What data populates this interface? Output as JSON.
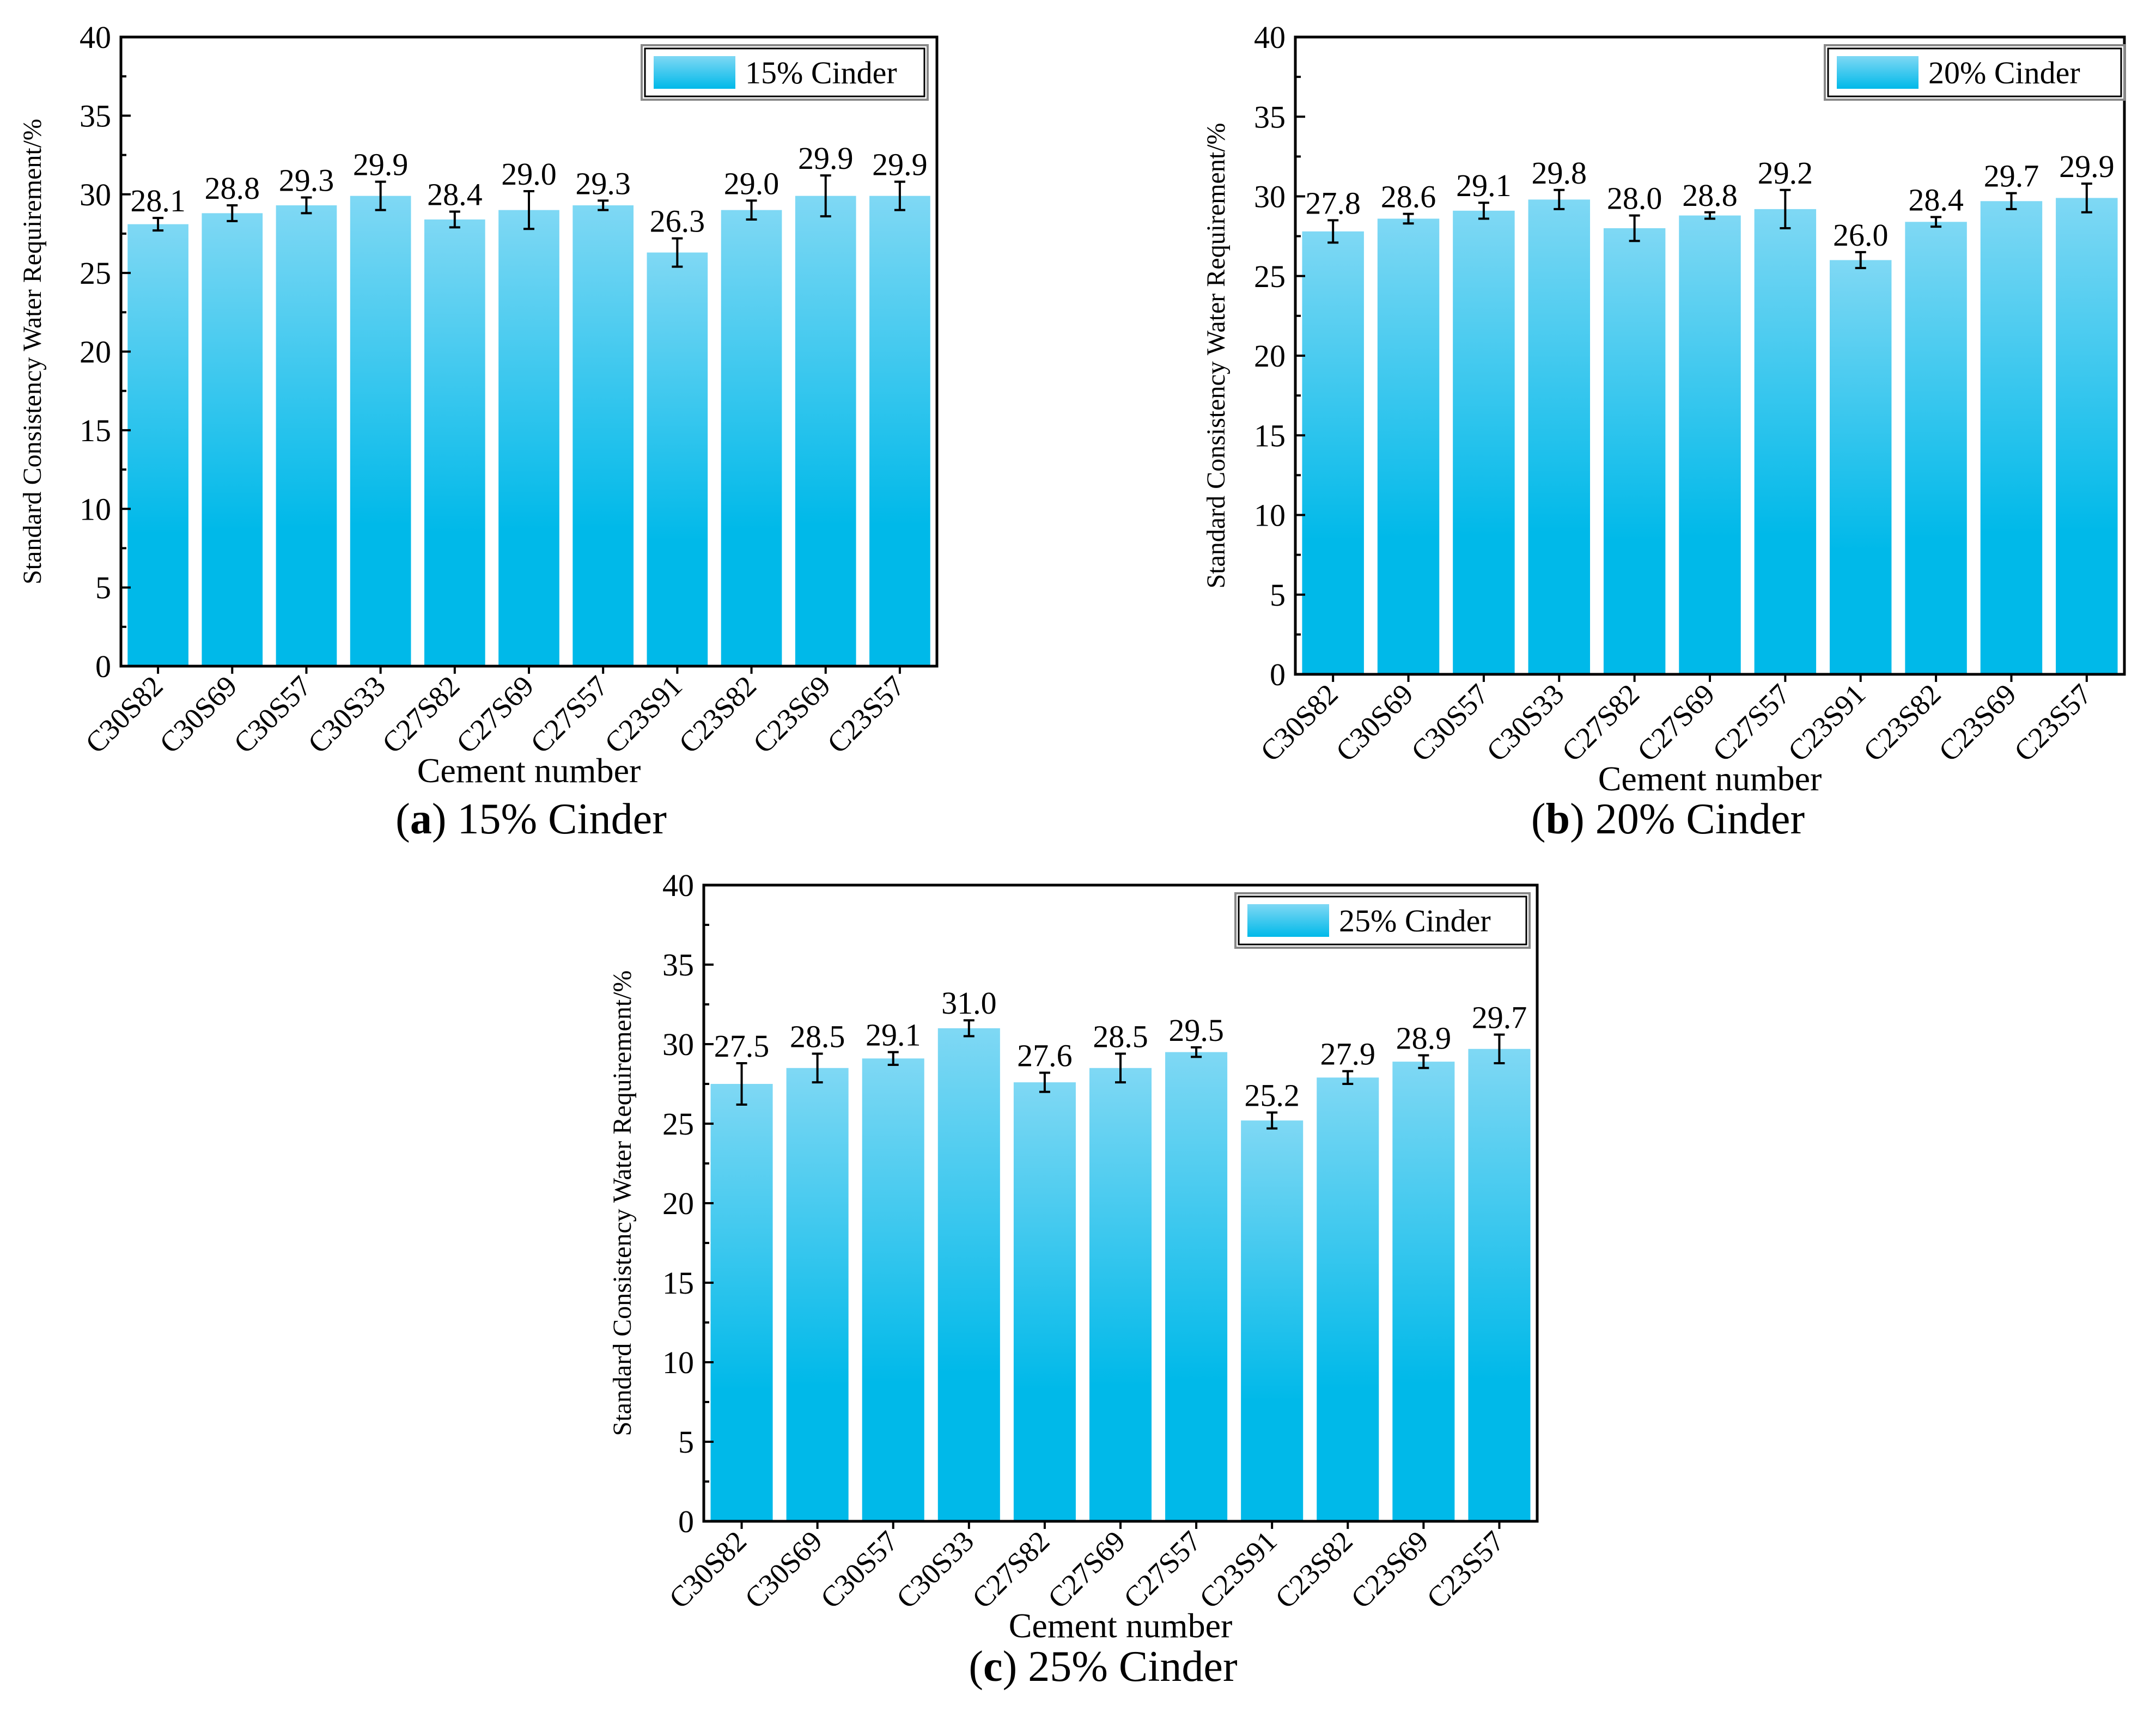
{
  "chart_data": [
    {
      "type": "bar",
      "caption_letter": "a",
      "caption_text": " 15% Cinder",
      "legend": "15% Cinder",
      "xlabel": "Cement number",
      "ylabel": "Standard Consistency Water Requirement/%",
      "ylim": [
        0,
        40
      ],
      "yticks": [
        0,
        5,
        10,
        15,
        20,
        25,
        30,
        35,
        40
      ],
      "categories": [
        "C30S82",
        "C30S69",
        "C30S57",
        "C30S33",
        "C27S82",
        "C27S69",
        "C27S57",
        "C23S91",
        "C23S82",
        "C23S69",
        "C23S57"
      ],
      "values": [
        28.1,
        28.8,
        29.3,
        29.9,
        28.4,
        29.0,
        29.3,
        26.3,
        29.0,
        29.9,
        29.9
      ],
      "value_labels": [
        "28.1",
        "28.8",
        "29.3",
        "29.9",
        "28.4",
        "29.0",
        "29.3",
        "26.3",
        "29.0",
        "29.9",
        "29.9"
      ],
      "errors": [
        0.4,
        0.5,
        0.5,
        0.9,
        0.5,
        1.2,
        0.3,
        0.9,
        0.6,
        1.3,
        0.9
      ]
    },
    {
      "type": "bar",
      "caption_letter": "b",
      "caption_text": " 20% Cinder",
      "legend": "20%  Cinder",
      "xlabel": "Cement number",
      "ylabel": "Standard Consistency Water Requirement/%",
      "ylim": [
        0,
        40
      ],
      "yticks": [
        0,
        5,
        10,
        15,
        20,
        25,
        30,
        35,
        40
      ],
      "categories": [
        "C30S82",
        "C30S69",
        "C30S57",
        "C30S33",
        "C27S82",
        "C27S69",
        "C27S57",
        "C23S91",
        "C23S82",
        "C23S69",
        "C23S57"
      ],
      "values": [
        27.8,
        28.6,
        29.1,
        29.8,
        28.0,
        28.8,
        29.2,
        26.0,
        28.4,
        29.7,
        29.9
      ],
      "value_labels": [
        "27.8",
        "28.6",
        "29.1",
        "29.8",
        "28.0",
        "28.8",
        "29.2",
        "26.0",
        "28.4",
        "29.7",
        "29.9"
      ],
      "errors": [
        0.7,
        0.3,
        0.5,
        0.6,
        0.8,
        0.2,
        1.2,
        0.5,
        0.3,
        0.5,
        0.9
      ]
    },
    {
      "type": "bar",
      "caption_letter": "c",
      "caption_text": " 25% Cinder",
      "legend": "25% Cinder",
      "xlabel": "Cement number",
      "ylabel": "Standard Consistency Water Requirement/%",
      "ylim": [
        0,
        40
      ],
      "yticks": [
        0,
        5,
        10,
        15,
        20,
        25,
        30,
        35,
        40
      ],
      "categories": [
        "C30S82",
        "C30S69",
        "C30S57",
        "C30S33",
        "C27S82",
        "C27S69",
        "C27S57",
        "C23S91",
        "C23S82",
        "C23S69",
        "C23S57"
      ],
      "values": [
        27.5,
        28.5,
        29.1,
        31.0,
        27.6,
        28.5,
        29.5,
        25.2,
        27.9,
        28.9,
        29.7
      ],
      "value_labels": [
        "27.5",
        "28.5",
        "29.1",
        "31.0",
        "27.6",
        "28.5",
        "29.5",
        "25.2",
        "27.9",
        "28.9",
        "29.7"
      ],
      "errors": [
        1.3,
        0.9,
        0.4,
        0.5,
        0.6,
        0.9,
        0.3,
        0.5,
        0.4,
        0.4,
        0.9
      ]
    }
  ],
  "colors": {
    "bar_top": "#7fd8f4",
    "bar_bottom": "#00b9e9",
    "axis": "#000000"
  }
}
